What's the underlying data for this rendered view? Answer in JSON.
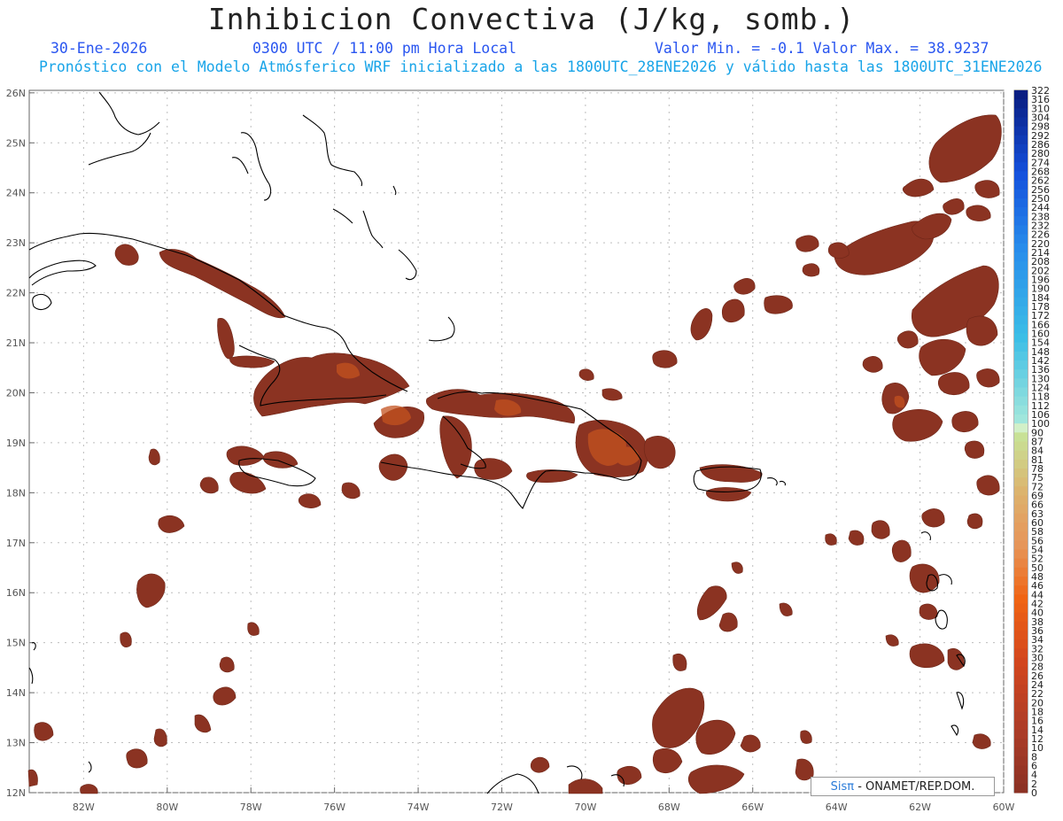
{
  "title": "Inhibicion Convectiva (J/kg, somb.)",
  "header": {
    "date": "30-Ene-2026",
    "time": "0300 UTC / 11:00 pm Hora Local",
    "minmax": "Valor Min. = -0.1  Valor Max. = 38.9237",
    "model_line": "Pronóstico con el Modelo Atmósferico WRF inicializado a las 1800UTC_28ENE2026 y válido hasta las  1800UTC_31ENE2026"
  },
  "credit": {
    "brand": "Sisπ",
    "text": " - ONAMET/REP.DOM."
  },
  "lat_labels": [
    "26N",
    "25N",
    "24N",
    "23N",
    "22N",
    "21N",
    "20N",
    "19N",
    "18N",
    "17N",
    "16N",
    "15N",
    "14N",
    "13N",
    "12N"
  ],
  "lon_labels": [
    "82W",
    "80W",
    "78W",
    "76W",
    "74W",
    "72W",
    "70W",
    "68W",
    "66W",
    "64W",
    "62W",
    "60W"
  ],
  "colorbar_labels": [
    "322",
    "316",
    "310",
    "304",
    "298",
    "292",
    "286",
    "280",
    "274",
    "268",
    "262",
    "256",
    "250",
    "244",
    "238",
    "232",
    "226",
    "220",
    "214",
    "208",
    "202",
    "196",
    "190",
    "184",
    "178",
    "172",
    "166",
    "160",
    "154",
    "148",
    "142",
    "136",
    "130",
    "124",
    "118",
    "112",
    "106",
    "100",
    "90",
    "87",
    "84",
    "81",
    "78",
    "75",
    "72",
    "69",
    "66",
    "63",
    "60",
    "58",
    "56",
    "54",
    "52",
    "50",
    "48",
    "46",
    "44",
    "42",
    "40",
    "38",
    "36",
    "34",
    "32",
    "30",
    "28",
    "26",
    "24",
    "22",
    "20",
    "18",
    "16",
    "14",
    "12",
    "10",
    "8",
    "6",
    "4",
    "2",
    "0"
  ],
  "colors": {
    "field_dark": "#8b3322",
    "field_mid": "#a33f23",
    "field_hot": "#d05a1f",
    "coast": "#000000",
    "grid": "#bdbdbd"
  }
}
